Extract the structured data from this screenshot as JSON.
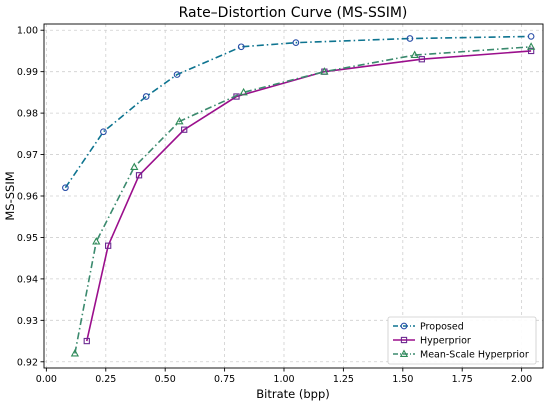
{
  "chart_data": {
    "type": "line",
    "title": "Rate–Distortion Curve (MS-SSIM)",
    "xlabel": "Bitrate (bpp)",
    "ylabel": "MS-SSIM",
    "xlim": [
      -0.01,
      2.09
    ],
    "ylim": [
      0.9185,
      1.0015
    ],
    "grid": true,
    "legend_position": "lower-right",
    "x_ticks": [
      "0.00",
      "0.25",
      "0.50",
      "0.75",
      "1.00",
      "1.25",
      "1.50",
      "1.75",
      "2.00"
    ],
    "x_tick_values": [
      0.0,
      0.25,
      0.5,
      0.75,
      1.0,
      1.25,
      1.5,
      1.75,
      2.0
    ],
    "y_ticks": [
      "0.92",
      "0.93",
      "0.94",
      "0.95",
      "0.96",
      "0.97",
      "0.98",
      "0.99",
      "1.00"
    ],
    "y_tick_values": [
      0.92,
      0.93,
      0.94,
      0.95,
      0.96,
      0.97,
      0.98,
      0.99,
      1.0
    ],
    "series": [
      {
        "name": "Proposed",
        "color": "#0e7490",
        "marker_color": "#2a4fa8",
        "marker": "circle",
        "linestyle": "dashdot",
        "x": [
          0.08,
          0.24,
          0.42,
          0.55,
          0.82,
          1.05,
          1.53,
          2.04
        ],
        "y": [
          0.962,
          0.9755,
          0.984,
          0.9893,
          0.996,
          0.997,
          0.998,
          0.9985
        ]
      },
      {
        "name": "Hyperprior",
        "color": "#9b0f8c",
        "marker_color": "#6b2a91",
        "marker": "square",
        "linestyle": "solid",
        "x": [
          0.17,
          0.26,
          0.39,
          0.58,
          0.8,
          1.17,
          1.58,
          2.04
        ],
        "y": [
          0.925,
          0.948,
          0.965,
          0.976,
          0.984,
          0.99,
          0.993,
          0.995
        ]
      },
      {
        "name": "Mean-Scale Hyperprior",
        "color": "#3b8a6e",
        "marker_color": "#2e8b57",
        "marker": "triangle",
        "linestyle": "dashdot",
        "x": [
          0.12,
          0.21,
          0.37,
          0.56,
          0.83,
          1.17,
          1.55,
          2.04
        ],
        "y": [
          0.922,
          0.949,
          0.967,
          0.978,
          0.985,
          0.99,
          0.994,
          0.996
        ]
      }
    ]
  }
}
